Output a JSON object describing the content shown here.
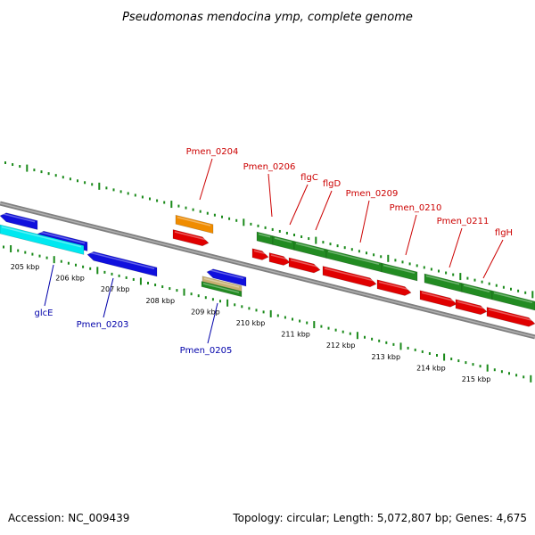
{
  "title": "Pseudomonas mendocina ymp, complete genome",
  "footer": {
    "accession": "Accession: NC_009439",
    "summary": "Topology: circular; Length: 5,072,807 bp; Genes: 4,675"
  },
  "colors": {
    "background": "#ffffff",
    "backbone": "#808080",
    "tick": "#1a8a1a",
    "label_red": "#cc0000",
    "label_blue": "#0000aa",
    "cds_forward": "#228b22",
    "cds_reverse": "#e00000",
    "cds_blue": "#1010dd",
    "cds_cyan": "#00e8f0",
    "cds_orange": "#f08c00",
    "cds_tan": "#c8b070"
  },
  "scale_labels": [
    "205 kbp",
    "206 kbp",
    "207 kbp",
    "208 kbp",
    "209 kbp",
    "210 kbp",
    "211 kbp",
    "212 kbp",
    "213 kbp",
    "214 kbp",
    "215 kbp"
  ],
  "gene_labels_top": [
    "Pmen_0204",
    "Pmen_0206",
    "flgC",
    "flgD",
    "Pmen_0209",
    "Pmen_0210",
    "Pmen_0211",
    "flgH"
  ],
  "gene_labels_bottom": [
    "glcE",
    "Pmen_0203",
    "Pmen_0205"
  ]
}
